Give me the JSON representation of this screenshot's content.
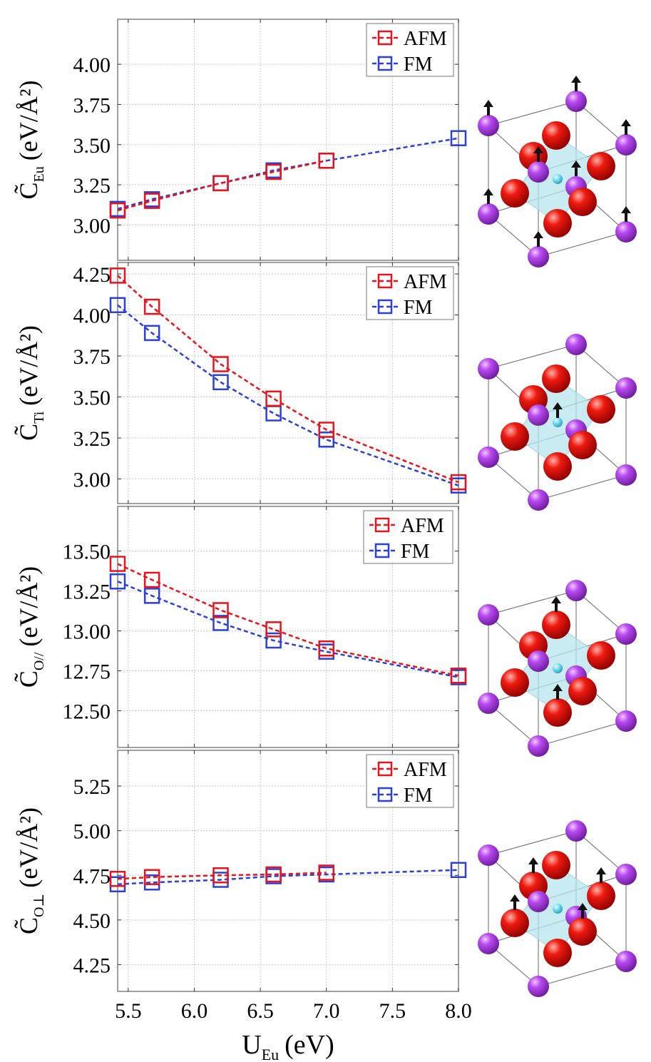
{
  "colors": {
    "afm": "#e8131b",
    "fm": "#2b3fd9",
    "grid": "#c8c8c8",
    "frame": "#808080",
    "o_atom": "#e00000",
    "eu_atom": "#b030e8",
    "ti_atom": "#5ad0e6",
    "octa": "#b7e6ee",
    "arrow": "#111111"
  },
  "x_axis": {
    "label": "U",
    "label_sub": "Eu",
    "unit": "(eV)",
    "range": [
      5.42,
      8.0
    ],
    "ticks": [
      5.5,
      6.0,
      6.5,
      7.0,
      7.5,
      8.0
    ],
    "tick_labels": [
      "5.5",
      "6.0",
      "6.5",
      "7.0",
      "7.5",
      "8.0"
    ]
  },
  "chart_data": [
    {
      "type": "line",
      "id": "eu",
      "ylabel_symbol": "C̃",
      "ylabel_sub": "Eu",
      "ylabel_unit": "(eV/Å²)",
      "ylim": [
        2.78,
        4.28
      ],
      "yticks": [
        3.0,
        3.25,
        3.5,
        3.75,
        4.0
      ],
      "ytick_labels": [
        "3.00",
        "3.25",
        "3.50",
        "3.75",
        "4.00"
      ],
      "legend": [
        "AFM",
        "FM"
      ],
      "series": [
        {
          "name": "AFM",
          "x": [
            5.42,
            5.68,
            6.2,
            6.6,
            7.0
          ],
          "y": [
            3.09,
            3.15,
            3.26,
            3.33,
            3.4
          ]
        },
        {
          "name": "FM",
          "x": [
            5.42,
            5.68,
            6.2,
            6.6,
            7.0,
            8.0
          ],
          "y": [
            3.1,
            3.16,
            3.26,
            3.34,
            3.4,
            3.54
          ]
        }
      ],
      "structure": "eu-spins"
    },
    {
      "type": "line",
      "id": "ti",
      "ylabel_symbol": "C̃",
      "ylabel_sub": "Ti",
      "ylabel_unit": "(eV/Å²)",
      "ylim": [
        2.85,
        4.32
      ],
      "yticks": [
        3.0,
        3.25,
        3.5,
        3.75,
        4.0,
        4.25
      ],
      "ytick_labels": [
        "3.00",
        "3.25",
        "3.50",
        "3.75",
        "4.00",
        "4.25"
      ],
      "legend": [
        "AFM",
        "FM"
      ],
      "series": [
        {
          "name": "AFM",
          "x": [
            5.42,
            5.68,
            6.2,
            6.6,
            7.0,
            8.0
          ],
          "y": [
            4.24,
            4.05,
            3.7,
            3.49,
            3.3,
            2.98
          ]
        },
        {
          "name": "FM",
          "x": [
            5.42,
            5.68,
            6.2,
            6.6,
            7.0,
            8.0
          ],
          "y": [
            4.06,
            3.89,
            3.59,
            3.4,
            3.24,
            2.96
          ]
        }
      ],
      "structure": "ti-spin"
    },
    {
      "type": "line",
      "id": "opar",
      "ylabel_symbol": "C̃",
      "ylabel_sub": "O//",
      "ylabel_unit": "(eV/Å²)",
      "ylim": [
        12.27,
        13.78
      ],
      "yticks": [
        12.5,
        12.75,
        13.0,
        13.25,
        13.5
      ],
      "ytick_labels": [
        "12.50",
        "12.75",
        "13.00",
        "13.25",
        "13.50"
      ],
      "legend": [
        "AFM",
        "FM"
      ],
      "series": [
        {
          "name": "AFM",
          "x": [
            5.42,
            5.68,
            6.2,
            6.6,
            7.0,
            8.0
          ],
          "y": [
            13.42,
            13.32,
            13.13,
            13.01,
            12.89,
            12.72
          ]
        },
        {
          "name": "FM",
          "x": [
            5.42,
            5.68,
            6.2,
            6.6,
            7.0,
            8.0
          ],
          "y": [
            13.31,
            13.22,
            13.05,
            12.94,
            12.87,
            12.71
          ]
        }
      ],
      "structure": "o-par-spins"
    },
    {
      "type": "line",
      "id": "operp",
      "ylabel_symbol": "C̃",
      "ylabel_sub": "O⊥",
      "ylabel_unit": "(eV/Å²)",
      "ylim": [
        4.1,
        5.45
      ],
      "yticks": [
        4.25,
        4.5,
        4.75,
        5.0,
        5.25
      ],
      "ytick_labels": [
        "4.25",
        "4.50",
        "4.75",
        "5.00",
        "5.25"
      ],
      "legend": [
        "AFM",
        "FM"
      ],
      "series": [
        {
          "name": "AFM",
          "x": [
            5.42,
            5.68,
            6.2,
            6.6,
            7.0
          ],
          "y": [
            4.73,
            4.74,
            4.75,
            4.755,
            4.765
          ]
        },
        {
          "name": "FM",
          "x": [
            5.42,
            5.68,
            6.2,
            6.6,
            7.0,
            8.0
          ],
          "y": [
            4.7,
            4.71,
            4.725,
            4.745,
            4.755,
            4.78
          ]
        }
      ],
      "structure": "o-perp-spins"
    }
  ]
}
